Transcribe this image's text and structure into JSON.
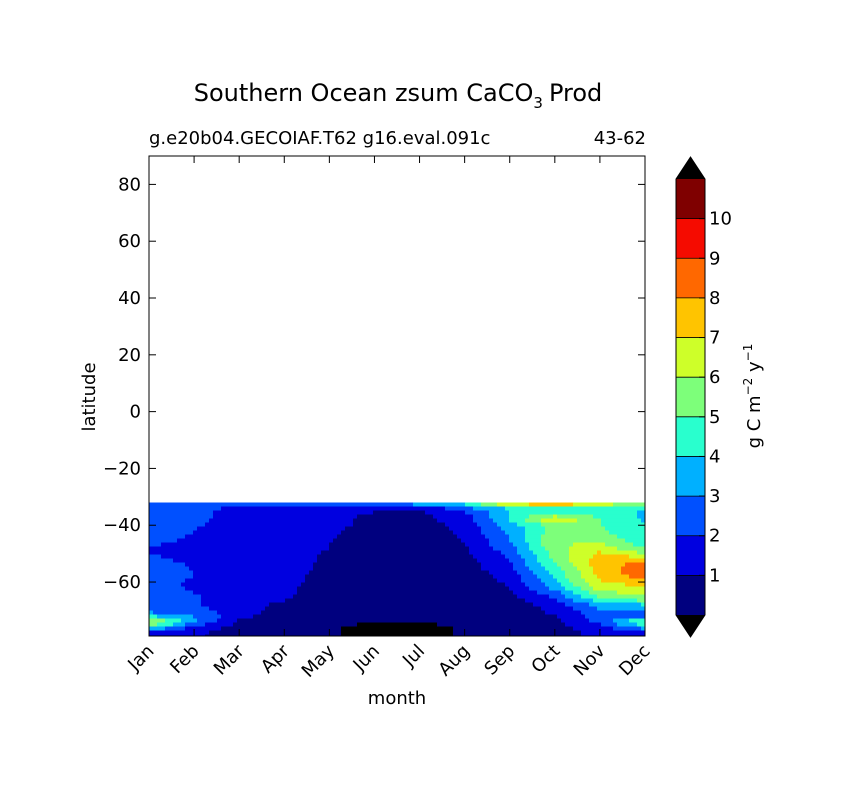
{
  "figure": {
    "title_main": "Southern Ocean zsum CaCO",
    "title_sub": "3",
    "title_tail": "Prod",
    "case_name": "g.e20b04.GECOIAF.T62 g16.eval.091c",
    "year_range": "43-62"
  },
  "chart_data": {
    "type": "heatmap",
    "title": "Southern Ocean zsum CaCO3 Prod",
    "xlabel": "month",
    "ylabel": "latitude",
    "x_categories": [
      "Jan",
      "Feb",
      "Mar",
      "Apr",
      "May",
      "Jun",
      "Jul",
      "Aug",
      "Sep",
      "Oct",
      "Nov",
      "Dec"
    ],
    "xlim": [
      0,
      11
    ],
    "ylim": [
      -79,
      90
    ],
    "y_ticks": [
      {
        "value": 80,
        "label": "80"
      },
      {
        "value": 60,
        "label": "60"
      },
      {
        "value": 40,
        "label": "40"
      },
      {
        "value": 20,
        "label": "20"
      },
      {
        "value": 0,
        "label": "0"
      },
      {
        "value": -20,
        "label": "−20"
      },
      {
        "value": -40,
        "label": "−40"
      },
      {
        "value": -60,
        "label": "−60"
      }
    ],
    "data_lat_range": [
      -79,
      -32
    ],
    "colorbar": {
      "label_main": "g C m",
      "label_exp1": "−2",
      "label_mid": " y",
      "label_exp2": "−1",
      "levels": [
        0,
        1,
        2,
        3,
        4,
        5,
        6,
        7,
        8,
        9,
        10,
        11
      ],
      "tick_labels": [
        "1",
        "2",
        "3",
        "4",
        "5",
        "6",
        "7",
        "8",
        "9",
        "10"
      ],
      "colors": [
        "#00007f",
        "#0000e0",
        "#0050ff",
        "#00b0ff",
        "#29ffce",
        "#7dff7a",
        "#ceff29",
        "#ffc400",
        "#ff6800",
        "#f50b00",
        "#7f0000"
      ],
      "under_color": "#000000",
      "over_color": "#000000",
      "extend": "both"
    },
    "field": {
      "months": [
        0,
        1,
        2,
        3,
        4,
        5,
        6,
        7,
        8,
        9,
        10,
        11
      ],
      "latitudes": [
        -78,
        -76,
        -74,
        -72,
        -70,
        -68,
        -66,
        -64,
        -62,
        -60,
        -58,
        -56,
        -54,
        -52,
        -50,
        -48,
        -46,
        -44,
        -42,
        -40,
        -38,
        -36,
        -34,
        -32
      ],
      "values": [
        [
          1.6,
          1.2,
          0.5,
          0.3,
          0.2,
          -0.5,
          -0.5,
          0.2,
          0.3,
          0.6,
          1.3,
          1.8
        ],
        [
          4.5,
          1.6,
          0.6,
          0.3,
          0.2,
          -0.5,
          -0.5,
          0.2,
          0.3,
          0.7,
          1.6,
          3.5
        ],
        [
          6.5,
          3.2,
          0.8,
          0.3,
          0.2,
          0.2,
          0.2,
          0.2,
          0.3,
          0.8,
          2.2,
          5.5
        ],
        [
          4.0,
          3.0,
          1.3,
          0.4,
          0.2,
          0.2,
          0.2,
          0.2,
          0.4,
          1.0,
          2.6,
          2.8
        ],
        [
          2.5,
          2.3,
          1.5,
          0.5,
          0.2,
          0.2,
          0.2,
          0.2,
          0.4,
          1.2,
          2.8,
          2.6
        ],
        [
          2.4,
          2.1,
          1.5,
          0.7,
          0.2,
          0.2,
          0.2,
          0.2,
          0.5,
          1.5,
          3.5,
          4.0
        ],
        [
          2.4,
          2.1,
          1.6,
          1.1,
          0.3,
          0.2,
          0.2,
          0.3,
          0.6,
          2.0,
          4.8,
          5.5
        ],
        [
          2.4,
          2.0,
          1.6,
          1.2,
          0.4,
          0.2,
          0.2,
          0.3,
          0.8,
          2.6,
          5.6,
          6.3
        ],
        [
          2.3,
          1.9,
          1.6,
          1.2,
          0.5,
          0.2,
          0.2,
          0.3,
          1.0,
          3.3,
          6.5,
          7.0
        ],
        [
          2.2,
          1.9,
          1.6,
          1.3,
          0.6,
          0.2,
          0.2,
          0.3,
          1.2,
          3.8,
          7.0,
          7.3
        ],
        [
          2.4,
          2.0,
          1.6,
          1.3,
          0.7,
          0.3,
          0.2,
          0.4,
          1.4,
          4.2,
          7.2,
          8.5
        ],
        [
          2.5,
          2.0,
          1.7,
          1.3,
          0.8,
          0.3,
          0.2,
          0.5,
          1.6,
          4.5,
          7.4,
          8.8
        ],
        [
          2.4,
          1.9,
          1.7,
          1.3,
          0.8,
          0.4,
          0.3,
          0.6,
          1.8,
          4.9,
          7.6,
          8.4
        ],
        [
          2.2,
          1.8,
          1.6,
          1.3,
          0.9,
          0.4,
          0.3,
          0.7,
          2.0,
          5.2,
          7.6,
          7.5
        ],
        [
          2.0,
          1.7,
          1.6,
          1.3,
          0.9,
          0.5,
          0.4,
          0.8,
          2.3,
          5.5,
          7.2,
          6.0
        ],
        [
          1.9,
          1.7,
          1.5,
          1.3,
          1.0,
          0.5,
          0.4,
          0.9,
          2.6,
          5.7,
          6.6,
          5.0
        ],
        [
          2.2,
          1.8,
          1.5,
          1.3,
          1.0,
          0.6,
          0.5,
          1.0,
          2.9,
          5.9,
          6.0,
          4.4
        ],
        [
          2.5,
          1.9,
          1.5,
          1.3,
          1.1,
          0.6,
          0.5,
          1.1,
          3.1,
          5.9,
          5.5,
          4.2
        ],
        [
          2.7,
          2.0,
          1.6,
          1.3,
          1.1,
          0.7,
          0.6,
          1.2,
          3.3,
          5.5,
          5.2,
          4.1
        ],
        [
          2.7,
          2.1,
          1.6,
          1.4,
          1.2,
          0.8,
          0.6,
          1.3,
          3.5,
          5.4,
          5.0,
          4.0
        ],
        [
          2.6,
          2.2,
          1.7,
          1.4,
          1.2,
          0.8,
          0.7,
          1.5,
          4.2,
          7.3,
          5.0,
          3.9
        ],
        [
          2.5,
          2.2,
          1.7,
          1.5,
          1.3,
          0.9,
          0.8,
          1.7,
          4.0,
          5.0,
          4.6,
          3.8
        ],
        [
          2.6,
          2.3,
          1.8,
          1.6,
          1.5,
          1.2,
          1.2,
          2.8,
          4.2,
          4.4,
          4.4,
          4.0
        ],
        [
          3.0,
          3.0,
          3.0,
          3.2,
          3.6,
          3.8,
          4.0,
          4.6,
          8.0,
          9.0,
          7.5,
          5.5
        ]
      ]
    }
  }
}
